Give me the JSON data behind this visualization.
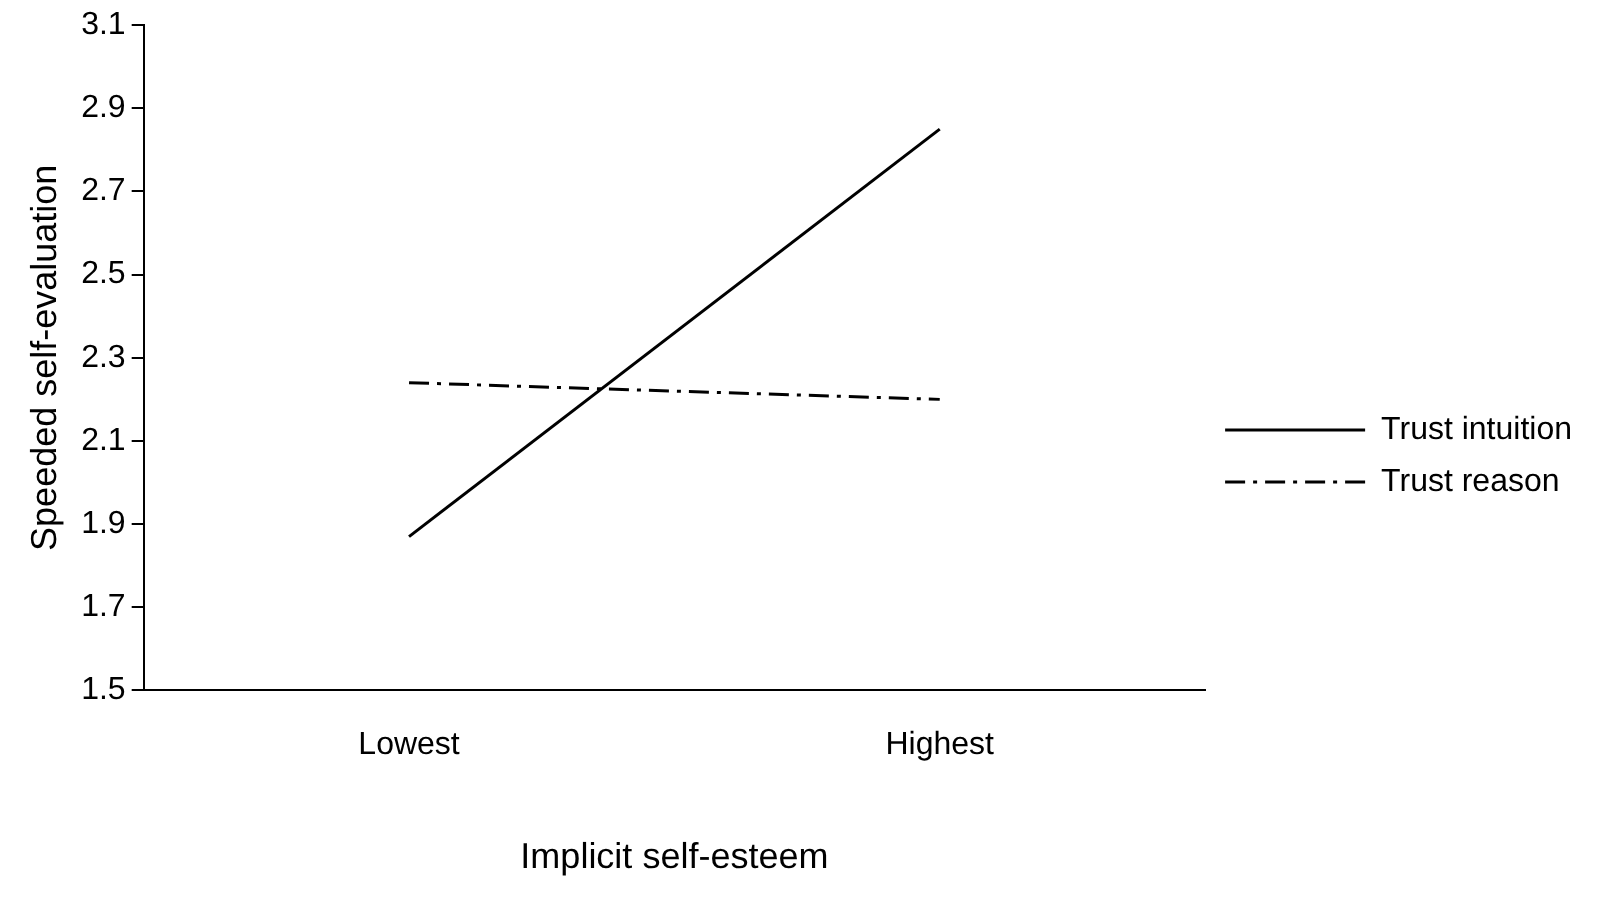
{
  "chart_data": {
    "type": "line",
    "xlabel": "Implicit self-esteem",
    "ylabel": "Speeded self-evaluation",
    "categories": [
      "Lowest",
      "Highest"
    ],
    "series": [
      {
        "name": "Trust intuition",
        "color": "#000000",
        "values": [
          1.87,
          2.85
        ],
        "line_style": "solid"
      },
      {
        "name": "Trust reason",
        "color": "#000000",
        "values": [
          2.24,
          2.2
        ],
        "line_style": "dashdot"
      }
    ],
    "ylim": [
      1.5,
      3.1
    ],
    "yticks": [
      1.5,
      1.7,
      1.9,
      2.1,
      2.3,
      2.5,
      2.7,
      2.9,
      3.1
    ],
    "grid": false,
    "legend": "right",
    "marker": "none"
  }
}
